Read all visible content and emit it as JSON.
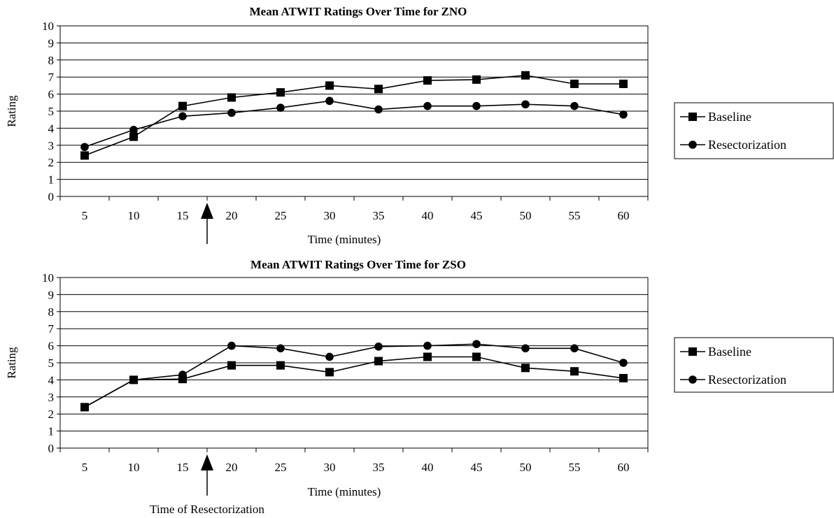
{
  "charts": [
    {
      "type": "line",
      "title": "Mean ATWIT Ratings Over Time for ZNO",
      "xlabel": "Time (minutes)",
      "ylabel": "Rating",
      "x": [
        5,
        10,
        15,
        20,
        25,
        30,
        35,
        40,
        45,
        50,
        55,
        60
      ],
      "ylim": [
        0,
        10
      ],
      "yticks": [
        0,
        1,
        2,
        3,
        4,
        5,
        6,
        7,
        8,
        9,
        10
      ],
      "grid": "horizontal",
      "legend": "right",
      "series": [
        {
          "name": "Baseline",
          "marker": "square",
          "values": [
            2.4,
            3.5,
            5.3,
            5.8,
            6.1,
            6.5,
            6.3,
            6.8,
            6.85,
            7.1,
            6.6,
            6.6
          ]
        },
        {
          "name": "Resectorization",
          "marker": "circle",
          "values": [
            2.9,
            3.9,
            4.7,
            4.9,
            5.2,
            5.6,
            5.1,
            5.3,
            5.3,
            5.4,
            5.3,
            4.8
          ]
        }
      ]
    },
    {
      "type": "line",
      "title": "Mean ATWIT Ratings Over Time for ZSO",
      "xlabel": "Time (minutes)",
      "ylabel": "Rating",
      "x": [
        5,
        10,
        15,
        20,
        25,
        30,
        35,
        40,
        45,
        50,
        55,
        60
      ],
      "ylim": [
        0,
        10
      ],
      "yticks": [
        0,
        1,
        2,
        3,
        4,
        5,
        6,
        7,
        8,
        9,
        10
      ],
      "grid": "horizontal",
      "legend": "right",
      "series": [
        {
          "name": "Baseline",
          "marker": "square",
          "values": [
            2.4,
            4.0,
            4.05,
            4.85,
            4.85,
            4.45,
            5.1,
            5.35,
            5.35,
            4.7,
            4.5,
            4.1
          ]
        },
        {
          "name": "Resectorization",
          "marker": "circle",
          "values": [
            2.4,
            4.0,
            4.3,
            6.0,
            5.85,
            5.35,
            5.95,
            6.0,
            6.1,
            5.85,
            5.85,
            5.0
          ]
        }
      ]
    }
  ],
  "annotation": {
    "text": "Time of Resectorization",
    "between_x": [
      15,
      20
    ]
  }
}
